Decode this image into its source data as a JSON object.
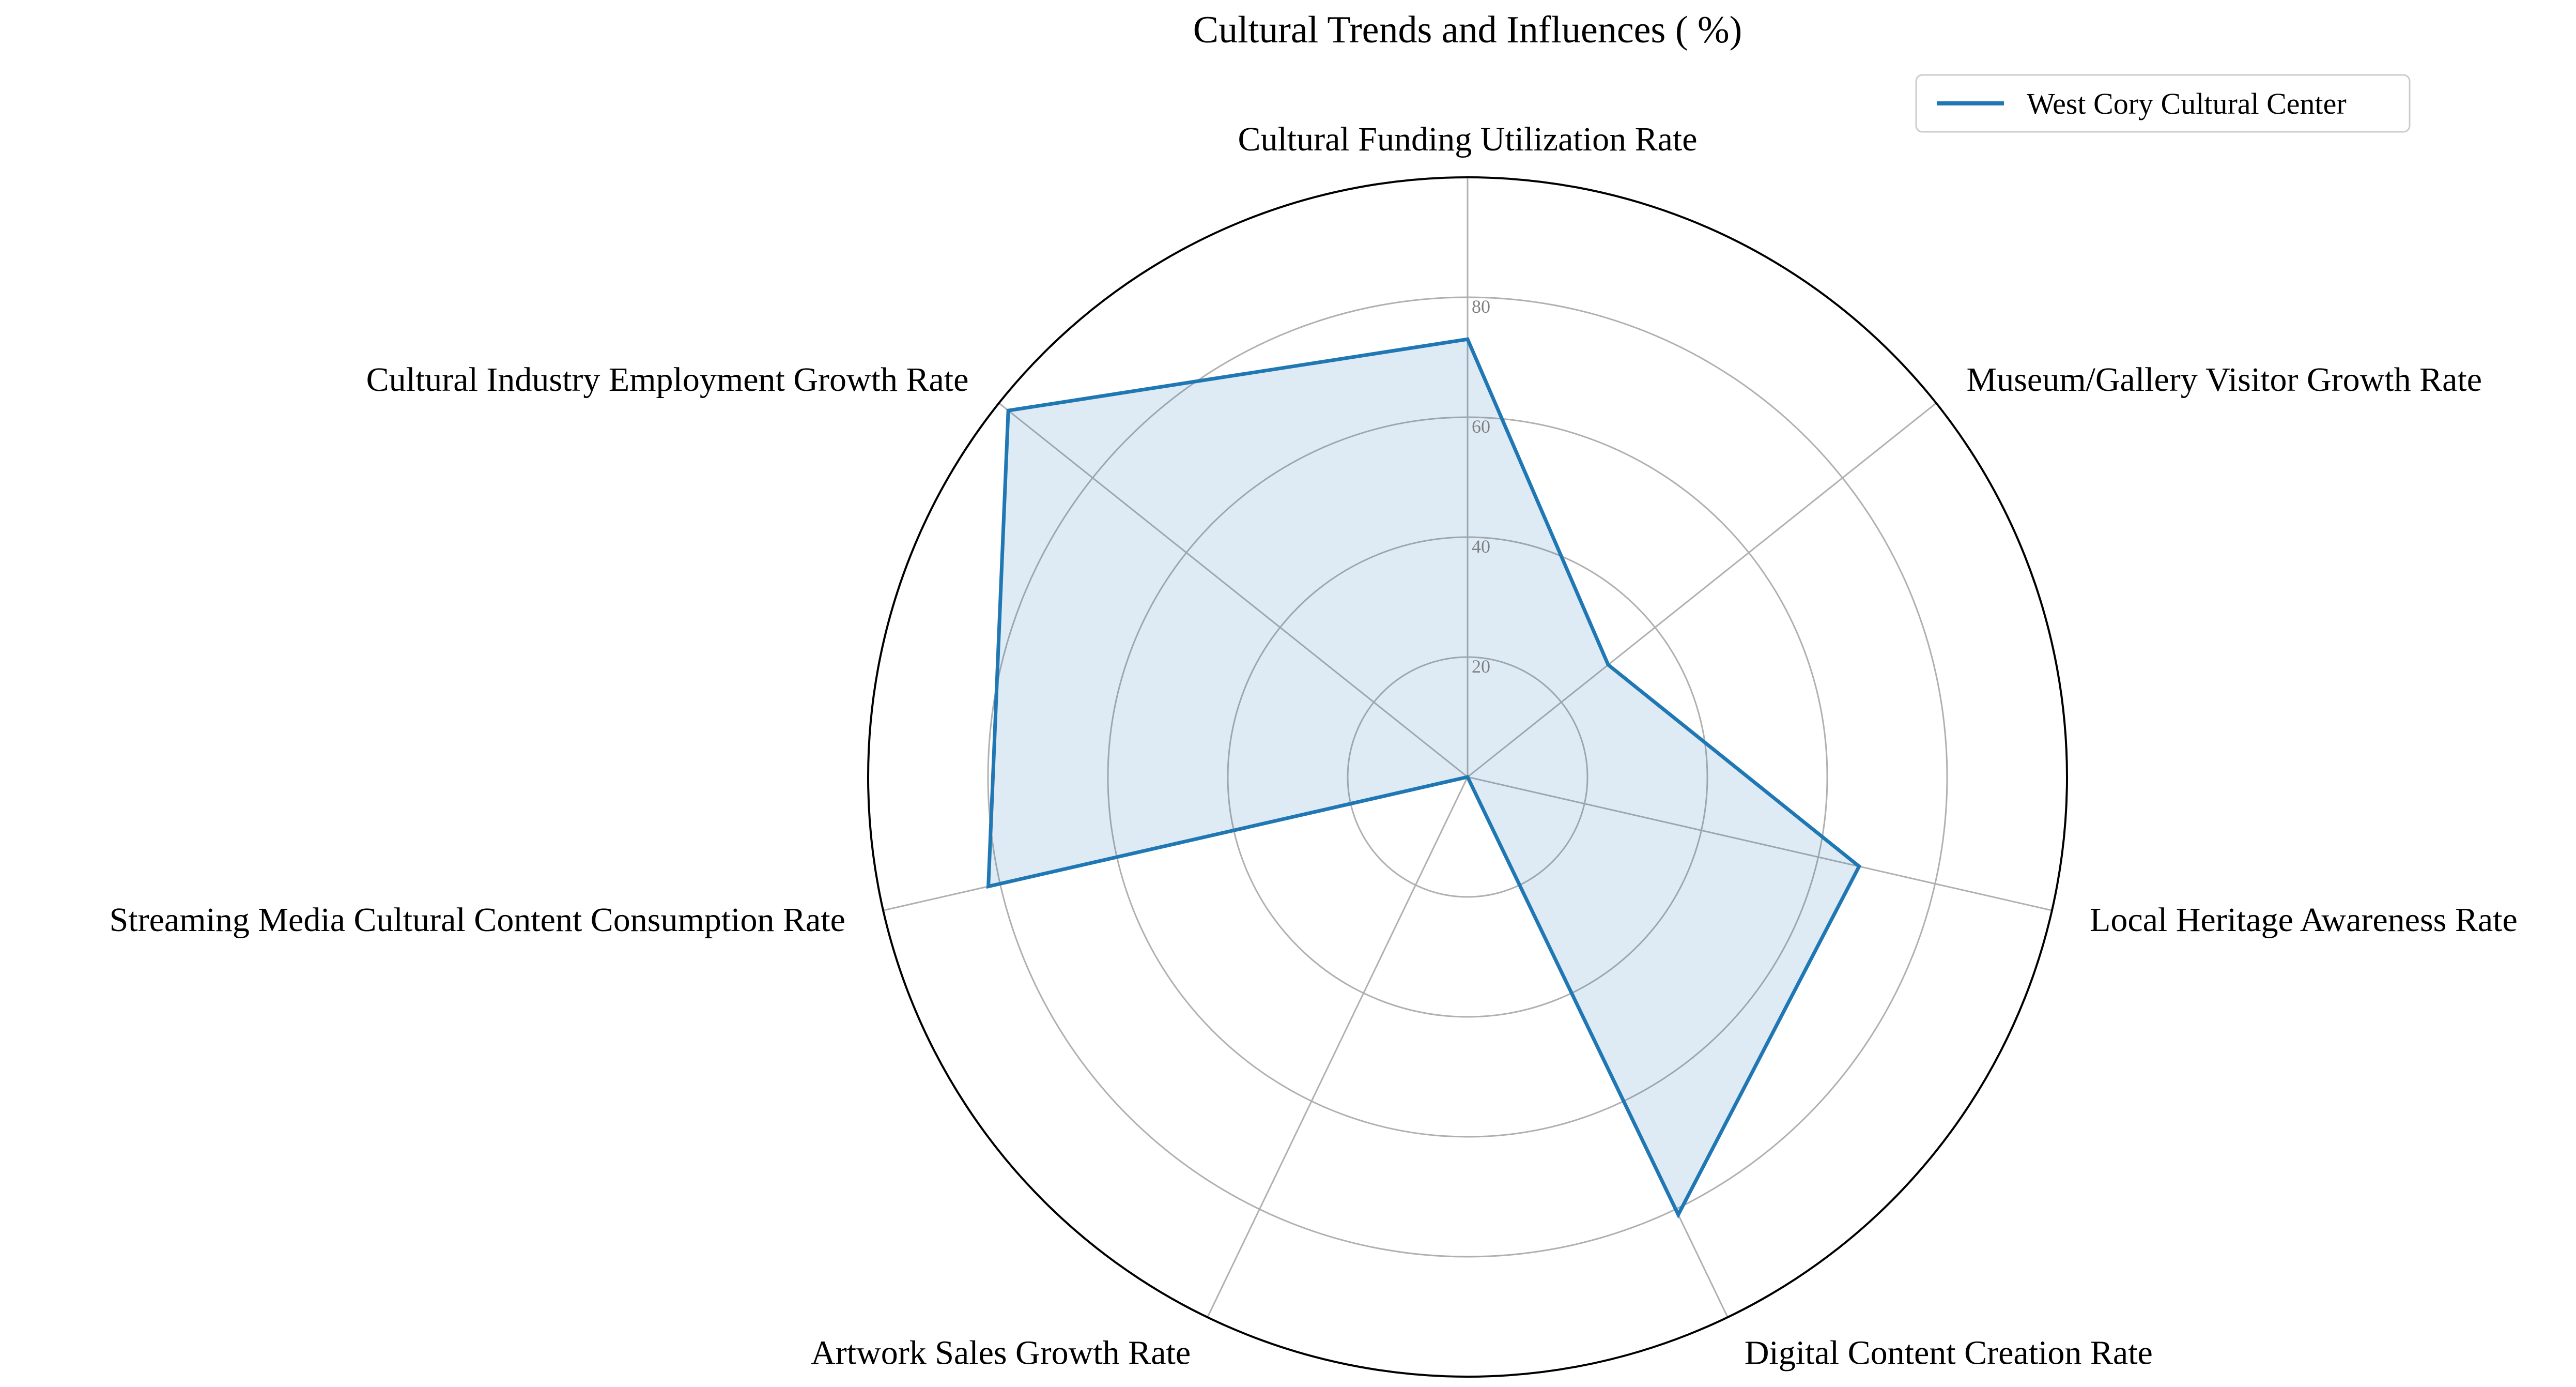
{
  "chart_data": {
    "type": "radar",
    "title": "Cultural Trends and Influences ( %)",
    "categories": [
      "Cultural Funding Utilization Rate",
      "Museum/Gallery Visitor Growth Rate",
      "Local Heritage Awareness Rate",
      "Digital Content Creation Rate",
      "Artwork Sales Growth Rate",
      "Streaming Media Cultural Content Consumption Rate",
      "Cultural Industry Employment Growth Rate"
    ],
    "series": [
      {
        "name": "West Cory Cultural Center",
        "values": [
          73,
          30,
          67,
          81,
          0,
          82,
          98
        ],
        "color": "#1f77b4",
        "fill_color": "#1f77b4",
        "fill_opacity": 0.15
      }
    ],
    "rlim": [
      0,
      100
    ],
    "r_ticks": [
      20,
      40,
      60,
      80
    ],
    "r_tick_labels": [
      "20",
      "40",
      "60",
      "80"
    ],
    "grid": true,
    "legend_position": "top-right"
  }
}
